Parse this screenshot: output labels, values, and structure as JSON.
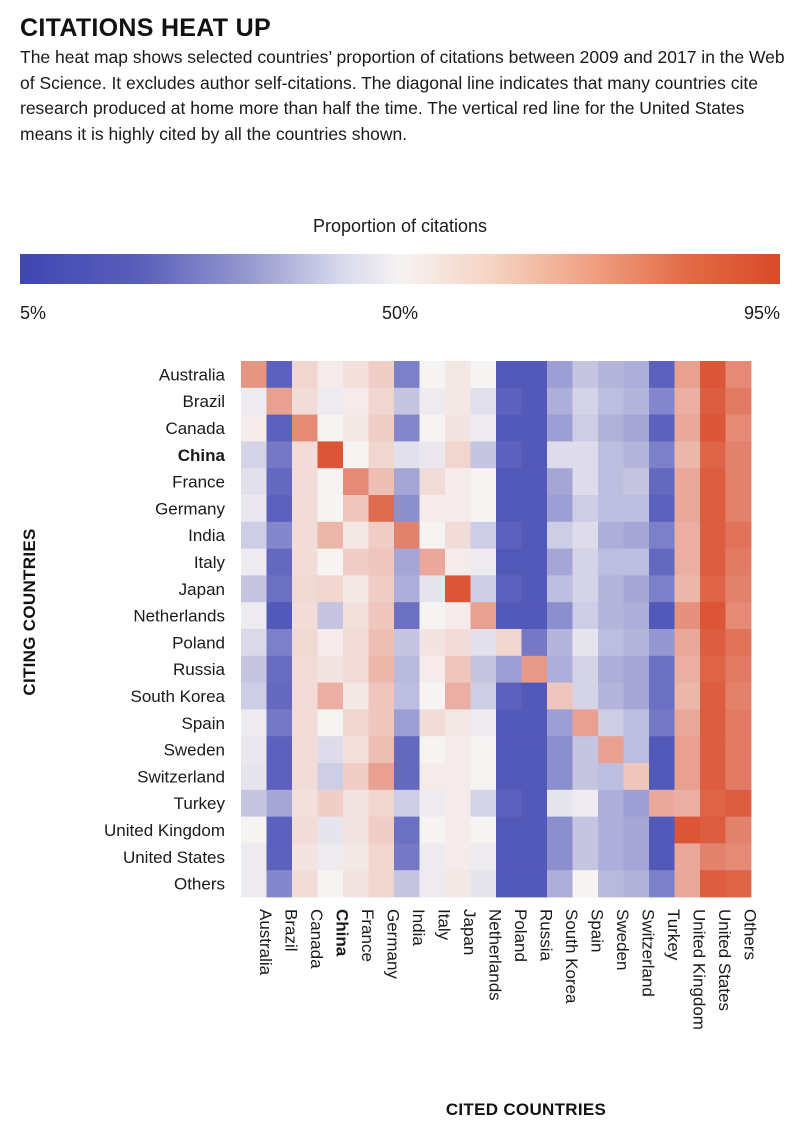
{
  "title": "CITATIONS HEAT UP",
  "description": "The heat map shows selected countries’ proportion of citations between 2009 and 2017 in the Web of Science. It excludes author self-citations. The diagonal line indicates that many countries cite research produced at home more than half the time. The vertical red line for the United States means it is highly cited by all the countries shown.",
  "legend": {
    "title": "Proportion of citations",
    "min_label": "5%",
    "mid_label": "50%",
    "max_label": "95%"
  },
  "colors": {
    "low": "#3f46b2",
    "mid": "#f6f3f3",
    "high": "#d94a28"
  },
  "chart_data": {
    "type": "heatmap",
    "xlabel": "CITED COUNTRIES",
    "ylabel": "CITING COUNTRIES",
    "highlight": "China",
    "value_range": [
      5,
      95
    ],
    "rows": [
      "Australia",
      "Brazil",
      "Canada",
      "China",
      "France",
      "Germany",
      "India",
      "Italy",
      "Japan",
      "Netherlands",
      "Poland",
      "Russia",
      "South Korea",
      "Spain",
      "Sweden",
      "Switzerland",
      "Turkey",
      "United Kingdom",
      "United States",
      "Others"
    ],
    "columns": [
      "Australia",
      "Brazil",
      "Canada",
      "China",
      "France",
      "Germany",
      "India",
      "Italy",
      "Japan",
      "Netherlands",
      "Poland",
      "Russia",
      "South Korea",
      "Spain",
      "Sweden",
      "Switzerland",
      "Turkey",
      "United Kingdom",
      "United States",
      "Others"
    ],
    "values": [
      [
        75,
        12,
        58,
        52,
        55,
        60,
        20,
        50,
        53,
        50,
        10,
        10,
        28,
        38,
        34,
        32,
        12,
        72,
        92,
        78
      ],
      [
        48,
        72,
        56,
        48,
        52,
        58,
        38,
        48,
        53,
        45,
        12,
        10,
        32,
        42,
        36,
        34,
        22,
        68,
        90,
        82
      ],
      [
        52,
        12,
        78,
        50,
        53,
        60,
        22,
        50,
        54,
        48,
        10,
        10,
        28,
        40,
        33,
        30,
        12,
        70,
        92,
        78
      ],
      [
        42,
        18,
        56,
        92,
        50,
        58,
        45,
        47,
        58,
        38,
        12,
        10,
        44,
        44,
        36,
        34,
        20,
        66,
        88,
        80
      ],
      [
        45,
        14,
        56,
        50,
        78,
        64,
        30,
        56,
        52,
        50,
        10,
        10,
        30,
        44,
        36,
        38,
        14,
        70,
        90,
        80
      ],
      [
        47,
        12,
        56,
        50,
        62,
        86,
        24,
        52,
        52,
        50,
        10,
        10,
        28,
        40,
        36,
        36,
        12,
        70,
        90,
        80
      ],
      [
        40,
        22,
        56,
        66,
        53,
        60,
        80,
        50,
        56,
        40,
        12,
        10,
        40,
        44,
        32,
        30,
        20,
        68,
        90,
        84
      ],
      [
        48,
        14,
        56,
        50,
        60,
        62,
        30,
        70,
        52,
        48,
        10,
        10,
        30,
        42,
        36,
        36,
        14,
        68,
        90,
        82
      ],
      [
        38,
        16,
        57,
        58,
        53,
        60,
        32,
        46,
        92,
        40,
        12,
        10,
        36,
        42,
        34,
        30,
        20,
        66,
        88,
        80
      ],
      [
        48,
        10,
        56,
        38,
        55,
        62,
        16,
        50,
        52,
        72,
        10,
        10,
        24,
        40,
        34,
        32,
        10,
        76,
        92,
        78
      ],
      [
        43,
        20,
        57,
        52,
        56,
        64,
        38,
        54,
        56,
        45,
        58,
        18,
        34,
        46,
        36,
        34,
        26,
        70,
        90,
        84
      ],
      [
        38,
        15,
        56,
        54,
        56,
        66,
        35,
        52,
        62,
        38,
        28,
        74,
        32,
        42,
        32,
        30,
        16,
        68,
        88,
        82
      ],
      [
        40,
        14,
        56,
        68,
        53,
        62,
        36,
        50,
        68,
        40,
        12,
        10,
        62,
        42,
        34,
        30,
        16,
        66,
        90,
        80
      ],
      [
        48,
        18,
        56,
        50,
        58,
        62,
        28,
        56,
        53,
        48,
        10,
        10,
        28,
        72,
        40,
        36,
        18,
        70,
        90,
        82
      ],
      [
        47,
        12,
        56,
        44,
        55,
        64,
        14,
        50,
        52,
        50,
        10,
        10,
        24,
        38,
        72,
        36,
        10,
        72,
        90,
        82
      ],
      [
        46,
        12,
        56,
        40,
        60,
        72,
        14,
        52,
        52,
        50,
        10,
        10,
        24,
        38,
        36,
        62,
        10,
        72,
        90,
        82
      ],
      [
        38,
        30,
        55,
        60,
        54,
        58,
        40,
        48,
        52,
        42,
        12,
        10,
        46,
        48,
        32,
        28,
        70,
        68,
        88,
        90
      ],
      [
        50,
        12,
        56,
        46,
        54,
        60,
        16,
        50,
        52,
        50,
        10,
        10,
        24,
        38,
        32,
        30,
        10,
        92,
        90,
        80
      ],
      [
        48,
        12,
        54,
        48,
        53,
        58,
        18,
        48,
        52,
        48,
        10,
        10,
        24,
        38,
        32,
        30,
        10,
        70,
        80,
        78
      ],
      [
        48,
        22,
        56,
        50,
        54,
        58,
        38,
        48,
        53,
        46,
        10,
        10,
        32,
        50,
        35,
        33,
        20,
        70,
        90,
        88
      ]
    ]
  }
}
